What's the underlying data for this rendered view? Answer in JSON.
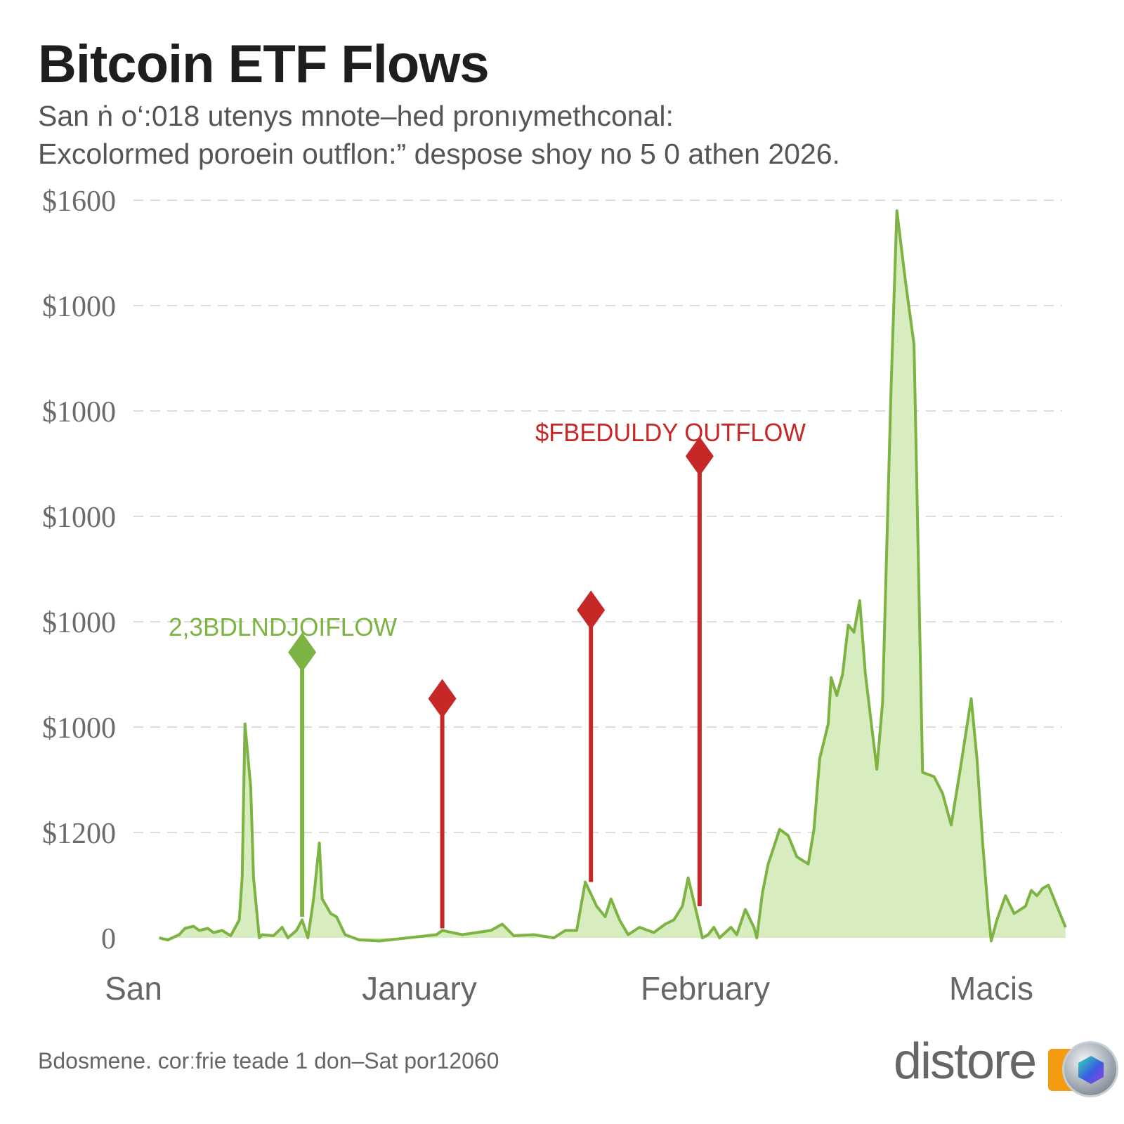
{
  "title": "Bitcoin ETF Flows",
  "subtitle_lines": [
    "San ṅ o‘:018 utenys mnote–hed pronıymethconal:",
    "Excolormed poroein outflon:” despose shoy no 5 0 athen 2026."
  ],
  "footer": "Bdosmene. corːfrie teade 1 don–Sat por12060",
  "logo": {
    "text": "distore",
    "icon": "coin-hexagon-icon",
    "box_color": "#f39c12"
  },
  "colors": {
    "inflow_line": "#7cb342",
    "inflow_fill": "#d8edbf",
    "outflow": "#c62828",
    "grid": "#dddddd",
    "text": "#666666"
  },
  "chart_data": {
    "type": "area",
    "title": "Bitcoin ETF Flows",
    "xlabel": "",
    "ylabel": "",
    "x_tick_labels": [
      "San",
      "January",
      "February",
      "Macis"
    ],
    "x_ticks": [
      0,
      1,
      2,
      3
    ],
    "y_tick_labels": [
      "0",
      "$1200",
      "$1000",
      "$1000",
      "$1000",
      "$1000",
      "$1000",
      "$1600"
    ],
    "y_ticks": [
      0,
      1,
      2,
      3,
      4,
      5,
      6,
      7
    ],
    "ylim": [
      0,
      7
    ],
    "grid": true,
    "grid_style": "dashed horizontal",
    "legend": "none",
    "series": [
      {
        "points": [
          [
            0.09,
            0
          ],
          [
            0.12,
            -0.02
          ],
          [
            0.16,
            0.03
          ],
          [
            0.18,
            0.09
          ],
          [
            0.21,
            0.11
          ],
          [
            0.23,
            0.07
          ],
          [
            0.26,
            0.09
          ],
          [
            0.28,
            0.05
          ],
          [
            0.31,
            0.07
          ],
          [
            0.34,
            0.02
          ],
          [
            0.37,
            0.17
          ],
          [
            0.38,
            0.57
          ],
          [
            0.39,
            2.03
          ],
          [
            0.41,
            1.43
          ],
          [
            0.42,
            0.57
          ],
          [
            0.44,
            0
          ],
          [
            0.45,
            0.03
          ],
          [
            0.49,
            0.02
          ],
          [
            0.52,
            0.1
          ],
          [
            0.54,
            0
          ],
          [
            0.57,
            0.07
          ],
          [
            0.59,
            0.17
          ],
          [
            0.61,
            0
          ],
          [
            0.63,
            0.37
          ],
          [
            0.65,
            0.9
          ],
          [
            0.66,
            0.37
          ],
          [
            0.69,
            0.23
          ],
          [
            0.71,
            0.2
          ],
          [
            0.74,
            0.03
          ],
          [
            0.79,
            -0.02
          ],
          [
            0.86,
            -0.03
          ],
          [
            0.96,
            0
          ],
          [
            1.06,
            0.03
          ],
          [
            1.08,
            0.07
          ],
          [
            1.15,
            0.03
          ],
          [
            1.25,
            0.07
          ],
          [
            1.29,
            0.13
          ],
          [
            1.33,
            0.02
          ],
          [
            1.4,
            0.03
          ],
          [
            1.47,
            0
          ],
          [
            1.51,
            0.07
          ],
          [
            1.55,
            0.07
          ],
          [
            1.58,
            0.53
          ],
          [
            1.62,
            0.3
          ],
          [
            1.65,
            0.2
          ],
          [
            1.67,
            0.37
          ],
          [
            1.7,
            0.17
          ],
          [
            1.73,
            0.03
          ],
          [
            1.77,
            0.1
          ],
          [
            1.82,
            0.05
          ],
          [
            1.86,
            0.13
          ],
          [
            1.89,
            0.17
          ],
          [
            1.92,
            0.3
          ],
          [
            1.94,
            0.57
          ],
          [
            1.97,
            0.23
          ],
          [
            1.99,
            0
          ],
          [
            2.01,
            0.03
          ],
          [
            2.03,
            0.1
          ],
          [
            2.05,
            0
          ],
          [
            2.09,
            0.1
          ],
          [
            2.11,
            0.03
          ],
          [
            2.14,
            0.27
          ],
          [
            2.17,
            0.1
          ],
          [
            2.18,
            0
          ],
          [
            2.2,
            0.43
          ],
          [
            2.22,
            0.7
          ],
          [
            2.26,
            1.03
          ],
          [
            2.29,
            0.97
          ],
          [
            2.32,
            0.77
          ],
          [
            2.36,
            0.7
          ],
          [
            2.38,
            1.03
          ],
          [
            2.4,
            1.7
          ],
          [
            2.43,
            2.03
          ],
          [
            2.44,
            2.47
          ],
          [
            2.46,
            2.3
          ],
          [
            2.48,
            2.5
          ],
          [
            2.5,
            2.97
          ],
          [
            2.52,
            2.9
          ],
          [
            2.54,
            3.2
          ],
          [
            2.56,
            2.5
          ],
          [
            2.6,
            1.6
          ],
          [
            2.62,
            2.23
          ],
          [
            2.65,
            5.23
          ],
          [
            2.67,
            6.9
          ],
          [
            2.7,
            6.23
          ],
          [
            2.73,
            5.63
          ],
          [
            2.76,
            1.57
          ],
          [
            2.8,
            1.53
          ],
          [
            2.83,
            1.37
          ],
          [
            2.86,
            1.07
          ],
          [
            2.89,
            1.57
          ],
          [
            2.93,
            2.27
          ],
          [
            2.95,
            1.7
          ],
          [
            2.97,
            0.9
          ],
          [
            2.99,
            0.23
          ],
          [
            3.0,
            -0.03
          ],
          [
            3.02,
            0.17
          ],
          [
            3.05,
            0.4
          ],
          [
            3.08,
            0.23
          ],
          [
            3.12,
            0.3
          ],
          [
            3.14,
            0.45
          ],
          [
            3.16,
            0.4
          ],
          [
            3.18,
            0.47
          ],
          [
            3.2,
            0.5
          ],
          [
            3.23,
            0.3
          ],
          [
            3.26,
            0.1
          ]
        ]
      }
    ],
    "markers": [
      {
        "kind": "inflow",
        "x": 0.59,
        "top": 2.71,
        "base": 0.2,
        "label": "2,3BDLNDJOIFLOW"
      },
      {
        "kind": "outflow",
        "x": 1.08,
        "top": 2.27,
        "base": 0.09,
        "label": ""
      },
      {
        "kind": "outflow",
        "x": 1.6,
        "top": 3.11,
        "base": 0.53,
        "label": ""
      },
      {
        "kind": "outflow",
        "x": 1.98,
        "top": 4.57,
        "base": 0.3,
        "label": "$FBEDULDY OUTFLOW"
      }
    ]
  }
}
